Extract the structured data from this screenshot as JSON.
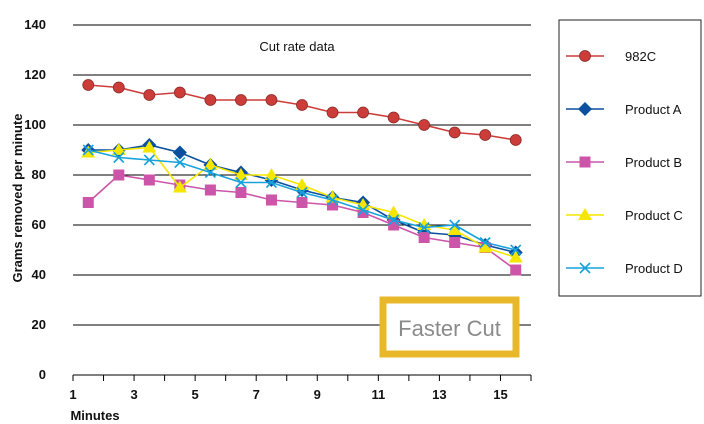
{
  "chart_data": {
    "type": "line",
    "title": "Cut rate data",
    "xlabel": "Minutes",
    "ylabel": "Grams removed per minute",
    "xlim": [
      1,
      16
    ],
    "ylim": [
      0,
      140
    ],
    "x_ticks": [
      1,
      3,
      5,
      7,
      9,
      11,
      13,
      15
    ],
    "y_ticks": [
      0,
      20,
      40,
      60,
      80,
      100,
      120,
      140
    ],
    "grid": "horizontal",
    "legend_position": "right",
    "x": [
      1.5,
      2.5,
      3.5,
      4.5,
      5.5,
      6.5,
      7.5,
      8.5,
      9.5,
      10.5,
      11.5,
      12.5,
      13.5,
      14.5,
      15.5
    ],
    "series": [
      {
        "name": "982C",
        "color": "#cc3d3a",
        "marker": "circle",
        "values": [
          116,
          115,
          112,
          113,
          110,
          110,
          110,
          108,
          105,
          105,
          103,
          100,
          97,
          96,
          94
        ]
      },
      {
        "name": "Product A",
        "color": "#0b4f9e",
        "marker": "diamond",
        "values": [
          90,
          90,
          92,
          89,
          84,
          81,
          78,
          74,
          71,
          69,
          62,
          57,
          56,
          52,
          49
        ]
      },
      {
        "name": "Product B",
        "color": "#cc55a9",
        "marker": "square",
        "values": [
          69,
          80,
          78,
          76,
          74,
          73,
          70,
          69,
          68,
          65,
          60,
          55,
          53,
          51,
          42
        ]
      },
      {
        "name": "Product C",
        "color": "#f5e600",
        "marker": "triangle",
        "values": [
          89,
          90,
          91,
          75,
          84,
          80,
          80,
          76,
          71,
          68,
          65,
          60,
          58,
          51,
          47
        ]
      },
      {
        "name": "Product D",
        "color": "#17a2dc",
        "marker": "x",
        "values": [
          90,
          87,
          86,
          85,
          81,
          77,
          77,
          73,
          70,
          66,
          62,
          59,
          60,
          53,
          50
        ]
      }
    ],
    "annotation": "Faster Cut"
  }
}
